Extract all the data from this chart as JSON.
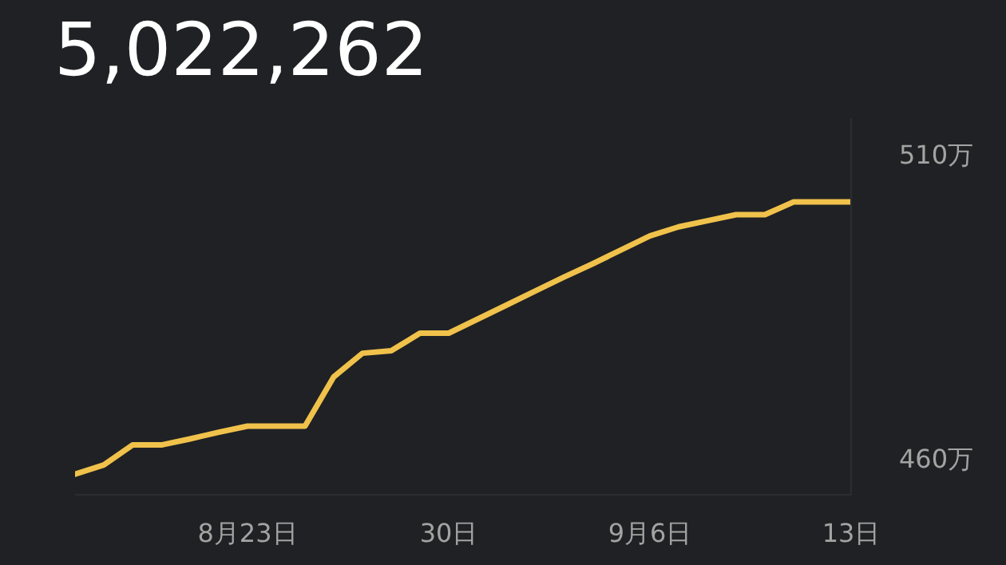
{
  "chart_data": {
    "type": "line",
    "title": "5,022,262",
    "x": [
      "--08-17",
      "--08-18",
      "--08-19",
      "--08-20",
      "--08-21",
      "--08-22",
      "--08-23",
      "--08-24",
      "--08-25",
      "--08-26",
      "--08-27",
      "--08-28",
      "--08-29",
      "--08-30",
      "--08-31",
      "--09-01",
      "--09-02",
      "--09-03",
      "--09-04",
      "--09-05",
      "--09-06",
      "--09-07",
      "--09-08",
      "--09-09",
      "--09-10",
      "--09-11",
      "--09-12",
      "--09-13"
    ],
    "series": [
      {
        "color": "#f0c24b",
        "values": [
          457.4,
          458.9,
          462.2,
          462.2,
          463.2,
          464.3,
          465.3,
          465.3,
          465.3,
          473.4,
          477.3,
          477.7,
          480.6,
          480.6,
          482.9,
          485.2,
          487.5,
          489.8,
          492.0,
          494.3,
          496.6,
          498.1,
          499.1,
          500.1,
          500.1,
          502.2,
          502.2,
          502.2
        ]
      }
    ],
    "xlim": [
      "--08-17",
      "--09-13"
    ],
    "xticks": [
      {
        "value": "--08-23",
        "label": "8月23日"
      },
      {
        "value": "--08-30",
        "label": "30日"
      },
      {
        "value": "--09-06",
        "label": "9月6日"
      },
      {
        "value": "--09-13",
        "label": "13日"
      }
    ],
    "ylim": [
      454,
      516
    ],
    "yticks": [
      {
        "value": 460,
        "label": "460万"
      },
      {
        "value": 510,
        "label": "510万"
      }
    ],
    "grid": false,
    "legend": false,
    "marker": "none",
    "line_style": "solid"
  }
}
